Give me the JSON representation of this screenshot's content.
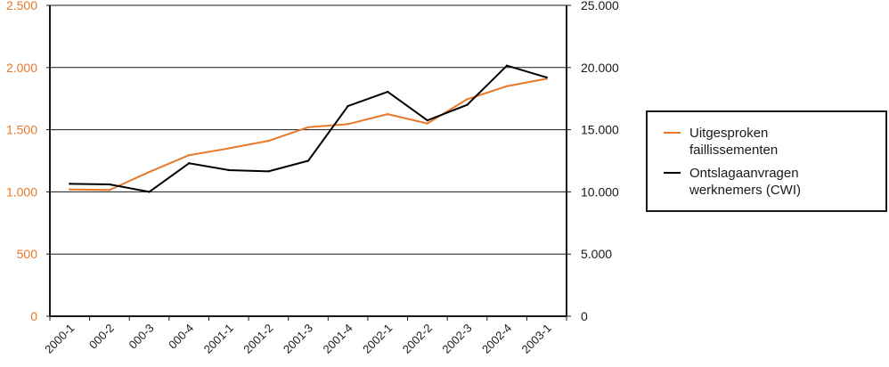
{
  "chart_data": {
    "type": "line",
    "title": "",
    "categories": [
      "2000-1",
      "000-2",
      "000-3",
      "000-4",
      "2001-1",
      "2001-2",
      "2001-3",
      "2001-4",
      "2002-1",
      "2002-2",
      "2002-3",
      "2002-4",
      "2003-1"
    ],
    "series": [
      {
        "name": "Uitgesproken faillissementen",
        "legend_lines": [
          "Uitgesproken",
          "faillissementen"
        ],
        "axis": "left",
        "color": "#e8782a",
        "values": [
          1020,
          1015,
          1160,
          1295,
          1350,
          1410,
          1520,
          1545,
          1625,
          1550,
          1745,
          1850,
          1910
        ]
      },
      {
        "name": "Ontslagaanvragen werknemers (CWI)",
        "legend_lines": [
          "Ontslagaanvragen",
          "werknemers (CWI)"
        ],
        "axis": "right",
        "color": "#000000",
        "values": [
          10650,
          10600,
          10000,
          12300,
          11750,
          11650,
          12500,
          16900,
          18050,
          15750,
          17000,
          20150,
          19200
        ]
      }
    ],
    "y_left": {
      "min": 0,
      "max": 2500,
      "ticks": [
        0,
        500,
        1000,
        1500,
        2000,
        2500
      ],
      "tick_labels": [
        "0",
        "500",
        "1.000",
        "1.500",
        "2.000",
        "2.500"
      ]
    },
    "y_right": {
      "min": 0,
      "max": 25000,
      "ticks": [
        0,
        5000,
        10000,
        15000,
        20000,
        25000
      ],
      "tick_labels": [
        "0",
        "5.000",
        "10.000",
        "15.000",
        "20.000",
        "25.000"
      ]
    },
    "grid": "horizontal",
    "legend_position": "right"
  }
}
